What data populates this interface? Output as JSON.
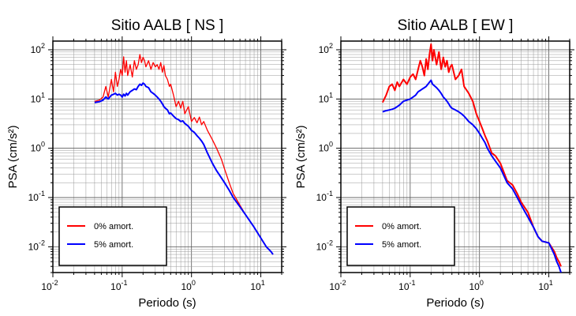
{
  "chart_data": [
    {
      "type": "line",
      "title": "Sitio AALB [ NS ]",
      "xlabel": "Periodo (s)",
      "ylabel": "PSA (cm/s²)",
      "xscale": "log",
      "yscale": "log",
      "xlim": [
        0.01,
        20
      ],
      "ylim": [
        0.003,
        150
      ],
      "grid": true,
      "legend": "bottom-left",
      "x_ticks": [
        "10-2",
        "10-1",
        "100",
        "101"
      ],
      "y_ticks": [
        "10-2",
        "10-1",
        "100",
        "101",
        "102"
      ],
      "series": [
        {
          "name": "0% amort.",
          "color": "#ff0000",
          "width": 1.3,
          "x": [
            0.04,
            0.047,
            0.053,
            0.058,
            0.063,
            0.07,
            0.075,
            0.08,
            0.085,
            0.09,
            0.095,
            0.1,
            0.105,
            0.11,
            0.115,
            0.12,
            0.13,
            0.14,
            0.15,
            0.16,
            0.17,
            0.18,
            0.19,
            0.2,
            0.21,
            0.22,
            0.24,
            0.26,
            0.28,
            0.3,
            0.32,
            0.34,
            0.36,
            0.38,
            0.4,
            0.42,
            0.45,
            0.48,
            0.5,
            0.55,
            0.6,
            0.65,
            0.7,
            0.75,
            0.8,
            0.9,
            1.0,
            1.1,
            1.2,
            1.3,
            1.4,
            1.5,
            1.7,
            2.0,
            2.3,
            2.7,
            3.0,
            3.5,
            4.0,
            5.0,
            6.0,
            8.0,
            10.0,
            12.0,
            14.0,
            15.0
          ],
          "y": [
            9,
            9.5,
            11,
            18,
            11,
            25,
            14,
            35,
            18,
            25,
            40,
            30,
            72,
            35,
            60,
            30,
            50,
            28,
            60,
            40,
            50,
            80,
            55,
            70,
            60,
            45,
            60,
            40,
            55,
            45,
            50,
            40,
            55,
            35,
            48,
            30,
            25,
            18,
            20,
            12,
            7,
            9,
            6.5,
            9,
            5,
            7,
            3.5,
            4.2,
            3.3,
            4.3,
            3.0,
            3.5,
            2.3,
            1.5,
            1.0,
            0.6,
            0.38,
            0.2,
            0.12,
            0.07,
            0.045,
            0.025,
            0.015,
            0.01,
            0.008,
            0.007
          ]
        },
        {
          "name": "5% amort.",
          "color": "#0000ff",
          "width": 2,
          "x": [
            0.04,
            0.047,
            0.053,
            0.058,
            0.063,
            0.07,
            0.075,
            0.08,
            0.085,
            0.09,
            0.095,
            0.1,
            0.105,
            0.11,
            0.115,
            0.12,
            0.13,
            0.14,
            0.15,
            0.16,
            0.17,
            0.18,
            0.19,
            0.2,
            0.21,
            0.22,
            0.24,
            0.26,
            0.28,
            0.3,
            0.32,
            0.34,
            0.36,
            0.38,
            0.4,
            0.42,
            0.45,
            0.48,
            0.5,
            0.55,
            0.6,
            0.65,
            0.7,
            0.75,
            0.8,
            0.9,
            1.0,
            1.1,
            1.2,
            1.3,
            1.4,
            1.5,
            1.7,
            2.0,
            2.3,
            2.7,
            3.0,
            3.5,
            4.0,
            5.0,
            6.0,
            8.0,
            10.0,
            12.0,
            14.0,
            15.0
          ],
          "y": [
            8.5,
            8.8,
            9.5,
            11,
            10,
            12,
            12.5,
            13,
            12,
            12.5,
            12,
            11,
            12.5,
            11.5,
            13,
            12,
            14,
            15,
            16,
            15.5,
            18,
            20,
            19,
            21,
            20,
            18,
            17,
            14,
            13,
            12,
            11,
            10,
            9,
            8,
            7,
            6.5,
            6,
            5,
            5.2,
            4.5,
            4,
            3.8,
            3.5,
            3.6,
            3.2,
            2.8,
            2.3,
            2.1,
            1.8,
            1.6,
            1.4,
            1.2,
            0.8,
            0.5,
            0.35,
            0.25,
            0.2,
            0.14,
            0.1,
            0.065,
            0.045,
            0.025,
            0.015,
            0.01,
            0.008,
            0.007
          ]
        }
      ]
    },
    {
      "type": "line",
      "title": "Sitio AALB [ EW ]",
      "xlabel": "Periodo (s)",
      "ylabel": "PSA (cm/s²)",
      "xscale": "log",
      "yscale": "log",
      "xlim": [
        0.01,
        20
      ],
      "ylim": [
        0.003,
        150
      ],
      "grid": true,
      "legend": "bottom-left",
      "x_ticks": [
        "10-2",
        "10-1",
        "100",
        "101"
      ],
      "y_ticks": [
        "10-2",
        "10-1",
        "100",
        "101",
        "102"
      ],
      "series": [
        {
          "name": "0% amort.",
          "color": "#ff0000",
          "width": 2,
          "x": [
            0.04,
            0.045,
            0.05,
            0.055,
            0.06,
            0.065,
            0.07,
            0.08,
            0.09,
            0.1,
            0.11,
            0.12,
            0.13,
            0.14,
            0.15,
            0.16,
            0.17,
            0.18,
            0.19,
            0.2,
            0.21,
            0.22,
            0.24,
            0.26,
            0.28,
            0.3,
            0.32,
            0.34,
            0.36,
            0.38,
            0.4,
            0.45,
            0.5,
            0.55,
            0.6,
            0.7,
            0.8,
            0.9,
            1.0,
            1.1,
            1.2,
            1.3,
            1.5,
            1.7,
            2.0,
            2.5,
            3.0,
            3.5,
            4.0,
            5.0,
            6.0,
            7.0,
            8.0,
            10.0,
            12.0,
            13.0,
            14.0,
            15.0
          ],
          "y": [
            8.5,
            12,
            18,
            20,
            15,
            22,
            18,
            25,
            20,
            28,
            32,
            25,
            40,
            60,
            45,
            30,
            65,
            40,
            80,
            130,
            60,
            100,
            50,
            90,
            40,
            70,
            45,
            60,
            35,
            45,
            50,
            25,
            30,
            40,
            18,
            13,
            9,
            5,
            3.5,
            2.5,
            1.8,
            1.4,
            0.8,
            0.7,
            0.5,
            0.22,
            0.18,
            0.12,
            0.08,
            0.05,
            0.025,
            0.016,
            0.013,
            0.012,
            0.008,
            0.006,
            0.005,
            0.004
          ]
        },
        {
          "name": "5% amort.",
          "color": "#0000ff",
          "width": 2,
          "x": [
            0.04,
            0.045,
            0.05,
            0.055,
            0.06,
            0.065,
            0.07,
            0.08,
            0.09,
            0.1,
            0.11,
            0.12,
            0.13,
            0.14,
            0.15,
            0.16,
            0.17,
            0.18,
            0.19,
            0.2,
            0.21,
            0.22,
            0.24,
            0.26,
            0.28,
            0.3,
            0.32,
            0.34,
            0.36,
            0.38,
            0.4,
            0.45,
            0.5,
            0.55,
            0.6,
            0.7,
            0.8,
            0.9,
            1.0,
            1.1,
            1.2,
            1.3,
            1.5,
            1.7,
            2.0,
            2.5,
            3.0,
            3.5,
            4.0,
            5.0,
            6.0,
            7.0,
            8.0,
            10.0,
            12.0,
            13.0,
            14.0,
            15.0
          ],
          "y": [
            5.5,
            5.8,
            6,
            6.2,
            6.5,
            7,
            7.5,
            9,
            9.5,
            10,
            11,
            12,
            14,
            15,
            16,
            17,
            18,
            20,
            22,
            24,
            20,
            19,
            17,
            15,
            13,
            11,
            10,
            9,
            8,
            7,
            6.5,
            6,
            5.5,
            5,
            4.5,
            3.5,
            3,
            2.5,
            2,
            1.6,
            1.3,
            1.0,
            0.7,
            0.55,
            0.4,
            0.2,
            0.15,
            0.1,
            0.07,
            0.04,
            0.025,
            0.016,
            0.013,
            0.012,
            0.007,
            0.005,
            0.004,
            0.003
          ]
        }
      ]
    }
  ]
}
